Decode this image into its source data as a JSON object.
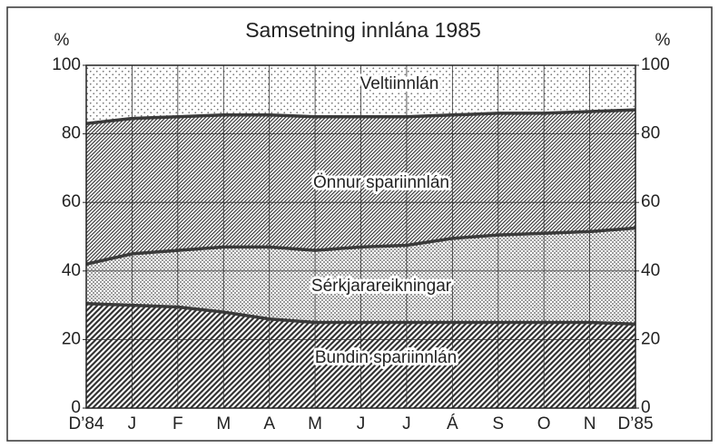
{
  "chart_data": {
    "type": "stacked_area",
    "title": "Samsetning innlána 1985",
    "y_label": "%",
    "categories": [
      "D’84",
      "J",
      "F",
      "M",
      "A",
      "M",
      "J",
      "J",
      "Á",
      "S",
      "O",
      "N",
      "D’85"
    ],
    "series": [
      {
        "name": "Bundin spariinnlán",
        "color": "#333333",
        "values": [
          30.5,
          30,
          29.5,
          28,
          26,
          25,
          25,
          25,
          25,
          25,
          25,
          25,
          24.5
        ]
      },
      {
        "name": "Sérkjarareikningar",
        "color": "#555555",
        "values": [
          11.5,
          15,
          16.5,
          19,
          21,
          21,
          22,
          22.5,
          24.5,
          25.5,
          26,
          26.5,
          28
        ]
      },
      {
        "name": "Önnur spariinnlán",
        "color": "#444444",
        "values": [
          41,
          39.5,
          39,
          38.5,
          38.5,
          39,
          38,
          37.5,
          36,
          35.5,
          35,
          35,
          34.5
        ]
      },
      {
        "name": "Veltiinnlán",
        "color": "#777777",
        "values": [
          17,
          15.5,
          15,
          14.5,
          14.5,
          15,
          15,
          15,
          14.5,
          14,
          14,
          13.5,
          13
        ]
      }
    ],
    "ylim": [
      0,
      100
    ],
    "yticks": [
      0,
      20,
      40,
      60,
      80,
      100
    ],
    "grid": true
  }
}
